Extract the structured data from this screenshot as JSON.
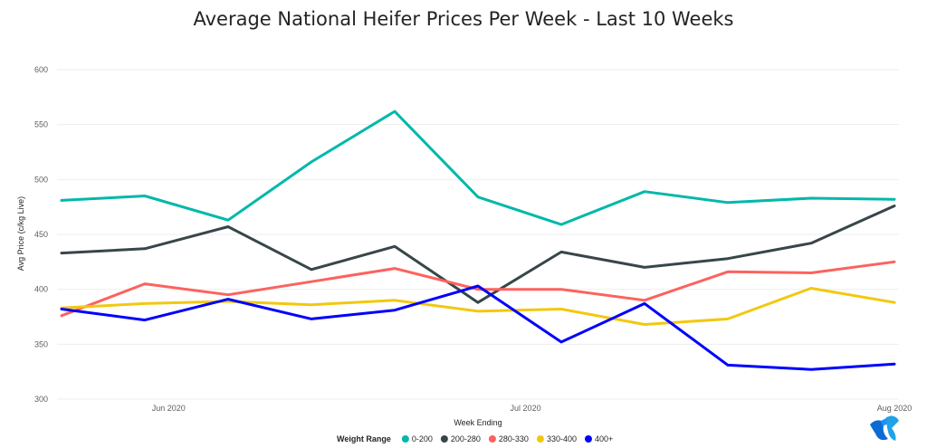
{
  "chart_data": {
    "type": "line",
    "title": "Average National Heifer Prices Per Week - Last 10 Weeks",
    "xlabel": "Week Ending",
    "ylabel": "Avg Price (c/kg Live)",
    "ylim": [
      300,
      600
    ],
    "yticks": [
      300,
      350,
      400,
      450,
      500,
      550,
      600
    ],
    "x": [
      "2020-05-23",
      "2020-05-30",
      "2020-06-06",
      "2020-06-13",
      "2020-06-20",
      "2020-06-27",
      "2020-07-04",
      "2020-07-11",
      "2020-07-18",
      "2020-07-25",
      "2020-08-01"
    ],
    "xticks": [
      {
        "date": "2020-06-01",
        "label": "Jun 2020"
      },
      {
        "date": "2020-07-01",
        "label": "Jul 2020"
      },
      {
        "date": "2020-08-01",
        "label": "Aug 2020"
      }
    ],
    "legend_title": "Weight Range",
    "legend_position": "bottom",
    "grid": true,
    "series": [
      {
        "name": "0-200",
        "color": "#01B8AA",
        "values": [
          481,
          485,
          463,
          516,
          562,
          484,
          459,
          489,
          479,
          483,
          482
        ]
      },
      {
        "name": "200-280",
        "color": "#374649",
        "values": [
          433,
          437,
          457,
          418,
          439,
          388,
          434,
          420,
          428,
          442,
          476
        ]
      },
      {
        "name": "280-330",
        "color": "#FD625E",
        "values": [
          376,
          405,
          395,
          407,
          419,
          400,
          400,
          390,
          416,
          415,
          425
        ]
      },
      {
        "name": "330-400",
        "color": "#F2C80F",
        "values": [
          383,
          387,
          389,
          386,
          390,
          380,
          382,
          368,
          373,
          401,
          388
        ]
      },
      {
        "name": "400+",
        "color": "#0000FF",
        "values": [
          382,
          372,
          391,
          373,
          381,
          403,
          352,
          387,
          331,
          327,
          332
        ]
      }
    ]
  },
  "logo": {
    "name": "tt-logo-icon",
    "color": "#0C6BD4"
  }
}
